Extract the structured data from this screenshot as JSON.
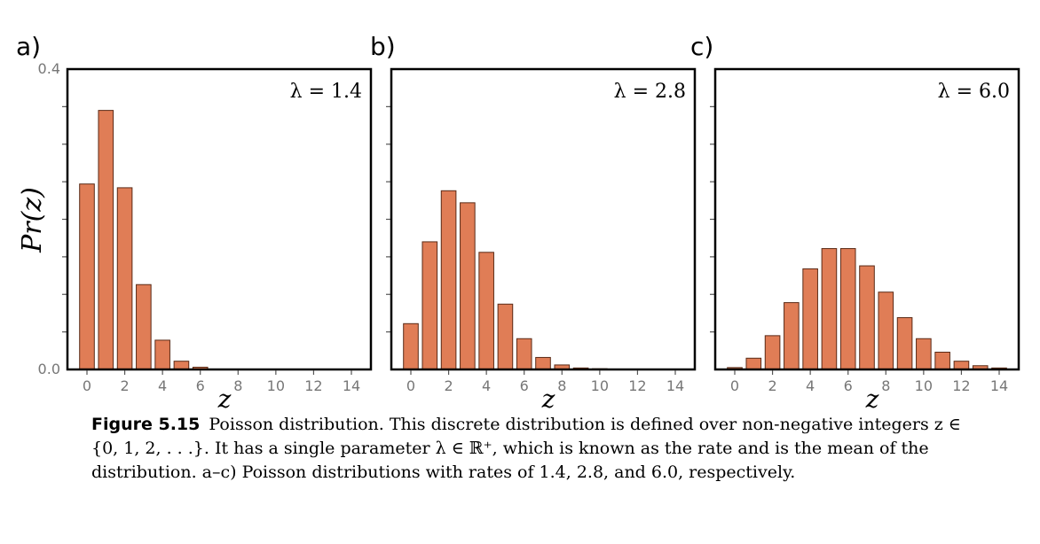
{
  "chart_data": [
    {
      "type": "bar",
      "panel": "a)",
      "annotation": "λ = 1.4",
      "xlabel": "z",
      "ylabel": "Pr(z)",
      "ylim": [
        0,
        0.4
      ],
      "yticklabels": [
        "0.0",
        "0.4"
      ],
      "xticks": [
        0,
        2,
        4,
        6,
        8,
        10,
        12,
        14
      ],
      "x": [
        0,
        1,
        2,
        3,
        4,
        5,
        6,
        7,
        8,
        9,
        10,
        11,
        12,
        13,
        14
      ],
      "values": [
        0.247,
        0.345,
        0.242,
        0.113,
        0.039,
        0.011,
        0.003,
        0,
        0,
        0,
        0,
        0,
        0,
        0,
        0
      ],
      "bar_color": "#E07D56"
    },
    {
      "type": "bar",
      "panel": "b)",
      "annotation": "λ = 2.8",
      "xlabel": "z",
      "ylim": [
        0,
        0.4
      ],
      "xticks": [
        0,
        2,
        4,
        6,
        8,
        10,
        12,
        14
      ],
      "x": [
        0,
        1,
        2,
        3,
        4,
        5,
        6,
        7,
        8,
        9,
        10,
        11,
        12,
        13,
        14
      ],
      "values": [
        0.061,
        0.17,
        0.238,
        0.222,
        0.156,
        0.087,
        0.041,
        0.016,
        0.006,
        0.002,
        0.001,
        0.0003,
        0,
        0,
        0
      ],
      "bar_color": "#E07D56"
    },
    {
      "type": "bar",
      "panel": "c)",
      "annotation": "λ = 6.0",
      "xlabel": "z",
      "ylim": [
        0,
        0.4
      ],
      "xticks": [
        0,
        2,
        4,
        6,
        8,
        10,
        12,
        14
      ],
      "x": [
        0,
        1,
        2,
        3,
        4,
        5,
        6,
        7,
        8,
        9,
        10,
        11,
        12,
        13,
        14
      ],
      "values": [
        0.0025,
        0.015,
        0.045,
        0.089,
        0.134,
        0.161,
        0.161,
        0.138,
        0.103,
        0.069,
        0.041,
        0.023,
        0.011,
        0.005,
        0.002
      ],
      "bar_color": "#E07D56"
    }
  ],
  "caption": {
    "label": "Figure 5.15",
    "text": "Poisson distribution. This discrete distribution is defined over non-negative integers z ∈ {0, 1, 2, . . .}. It has a single parameter λ ∈ ℝ⁺, which is known as the rate and is the mean of the distribution. a–c) Poisson distributions with rates of 1.4, 2.8, and 6.0, respectively."
  }
}
